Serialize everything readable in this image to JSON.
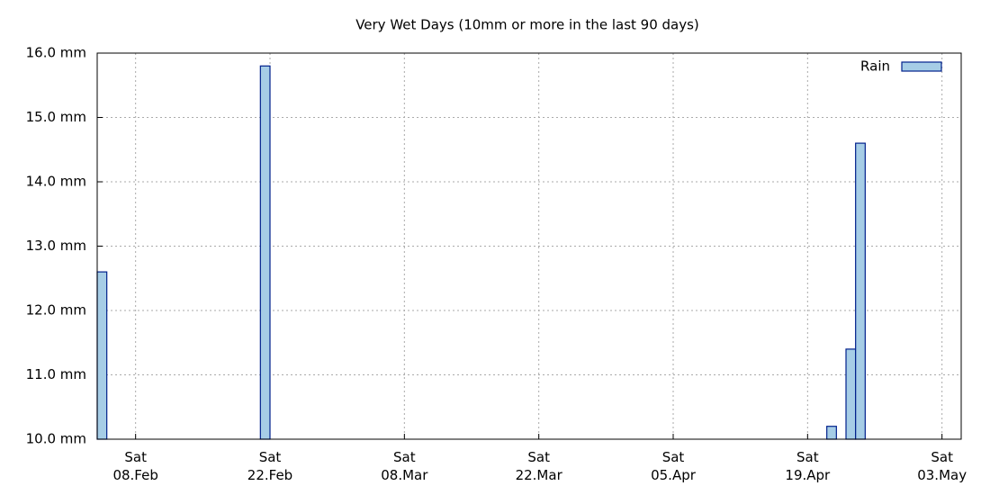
{
  "chart_data": {
    "type": "bar",
    "title": "Very Wet Days (10mm or more in the last 90 days)",
    "x": [
      "02-04",
      "02-21",
      "04-21",
      "04-23",
      "04-24"
    ],
    "series": [
      {
        "name": "Rain",
        "color": "#a6cde6",
        "edge": "#00208c",
        "values": [
          12.6,
          15.8,
          10.2,
          11.4,
          14.6
        ]
      }
    ],
    "xlim": [
      "02-04",
      "05-05"
    ],
    "xticks": [
      {
        "value": "02-08",
        "label": "Sat 08.Feb"
      },
      {
        "value": "02-22",
        "label": "Sat 22.Feb"
      },
      {
        "value": "03-08",
        "label": "Sat 08.Mar"
      },
      {
        "value": "03-22",
        "label": "Sat 22.Mar"
      },
      {
        "value": "04-05",
        "label": "Sat 05.Apr"
      },
      {
        "value": "04-19",
        "label": "Sat 19.Apr"
      },
      {
        "value": "05-03",
        "label": "Sat 03.May"
      }
    ],
    "ylim": [
      10,
      16
    ],
    "yticks": [
      {
        "value": 10,
        "label": "10.0 mm"
      },
      {
        "value": 11,
        "label": "11.0 mm"
      },
      {
        "value": 12,
        "label": "12.0 mm"
      },
      {
        "value": 13,
        "label": "13.0 mm"
      },
      {
        "value": 14,
        "label": "14.0 mm"
      },
      {
        "value": 15,
        "label": "15.0 mm"
      },
      {
        "value": 16,
        "label": "16.0 mm"
      }
    ],
    "grid": true,
    "legend": "top-right"
  }
}
